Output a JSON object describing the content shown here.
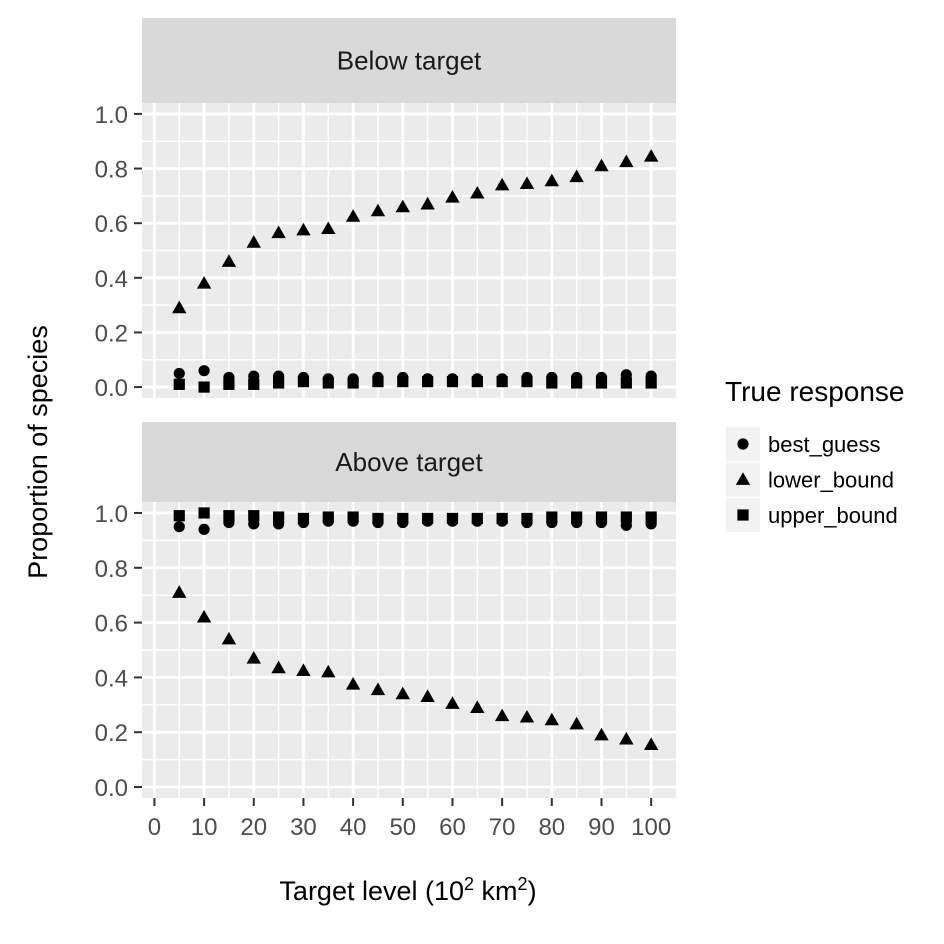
{
  "chart_data": {
    "type": "scatter",
    "facet_by": "panel",
    "panels": [
      "Below target",
      "Above target"
    ],
    "xlabel": "Target level  (10² km²)",
    "xlabel_parts": {
      "main": "Target level  (10",
      "sup1": "2",
      "mid": " km",
      "sup2": "2",
      "end": ")"
    },
    "ylabel": "Proportion of species",
    "xlim": [
      -2.5,
      105
    ],
    "ylim": [
      -0.04,
      1.04
    ],
    "x_ticks": [
      0,
      10,
      20,
      30,
      40,
      50,
      60,
      70,
      80,
      90,
      100
    ],
    "y_ticks": [
      0.0,
      0.2,
      0.4,
      0.6,
      0.8,
      1.0
    ],
    "y_tick_labels": [
      "0.0",
      "0.2",
      "0.4",
      "0.6",
      "0.8",
      "1.0"
    ],
    "grid": true,
    "x": [
      5,
      10,
      15,
      20,
      25,
      30,
      35,
      40,
      45,
      50,
      55,
      60,
      65,
      70,
      75,
      80,
      85,
      90,
      95,
      100
    ],
    "legend": {
      "title": "True response",
      "position": "right",
      "entries": [
        {
          "label": "best_guess",
          "shape": "circle"
        },
        {
          "label": "lower_bound",
          "shape": "triangle"
        },
        {
          "label": "upper_bound",
          "shape": "square"
        }
      ]
    },
    "series": [
      {
        "name": "best_guess",
        "panel": "Below target",
        "shape": "circle",
        "values": [
          0.05,
          0.06,
          0.035,
          0.04,
          0.04,
          0.035,
          0.03,
          0.03,
          0.035,
          0.035,
          0.03,
          0.03,
          0.03,
          0.03,
          0.035,
          0.035,
          0.035,
          0.035,
          0.045,
          0.04
        ]
      },
      {
        "name": "lower_bound",
        "panel": "Below target",
        "shape": "triangle",
        "values": [
          0.29,
          0.38,
          0.46,
          0.53,
          0.565,
          0.575,
          0.58,
          0.625,
          0.645,
          0.66,
          0.67,
          0.695,
          0.71,
          0.74,
          0.745,
          0.755,
          0.77,
          0.81,
          0.825,
          0.845
        ]
      },
      {
        "name": "upper_bound",
        "panel": "Below target",
        "shape": "square",
        "values": [
          0.01,
          0.0,
          0.01,
          0.01,
          0.015,
          0.02,
          0.015,
          0.015,
          0.02,
          0.02,
          0.02,
          0.02,
          0.02,
          0.02,
          0.02,
          0.015,
          0.015,
          0.015,
          0.015,
          0.015
        ]
      },
      {
        "name": "best_guess",
        "panel": "Above target",
        "shape": "circle",
        "values": [
          0.95,
          0.94,
          0.965,
          0.96,
          0.96,
          0.965,
          0.97,
          0.97,
          0.965,
          0.965,
          0.97,
          0.97,
          0.97,
          0.97,
          0.965,
          0.965,
          0.965,
          0.965,
          0.955,
          0.96
        ]
      },
      {
        "name": "lower_bound",
        "panel": "Above target",
        "shape": "triangle",
        "values": [
          0.71,
          0.62,
          0.54,
          0.47,
          0.435,
          0.425,
          0.42,
          0.375,
          0.355,
          0.34,
          0.33,
          0.305,
          0.29,
          0.26,
          0.255,
          0.245,
          0.23,
          0.19,
          0.175,
          0.155
        ]
      },
      {
        "name": "upper_bound",
        "panel": "Above target",
        "shape": "square",
        "values": [
          0.99,
          1.0,
          0.99,
          0.99,
          0.985,
          0.98,
          0.985,
          0.985,
          0.98,
          0.98,
          0.98,
          0.98,
          0.98,
          0.98,
          0.98,
          0.985,
          0.985,
          0.985,
          0.985,
          0.985
        ]
      }
    ]
  },
  "colors": {
    "panel_bg": "#ebebeb",
    "strip_bg": "#d9d9d9",
    "grid": "#ffffff",
    "point": "#000000",
    "tick_text": "#4d4d4d",
    "title_text": "#000000"
  }
}
